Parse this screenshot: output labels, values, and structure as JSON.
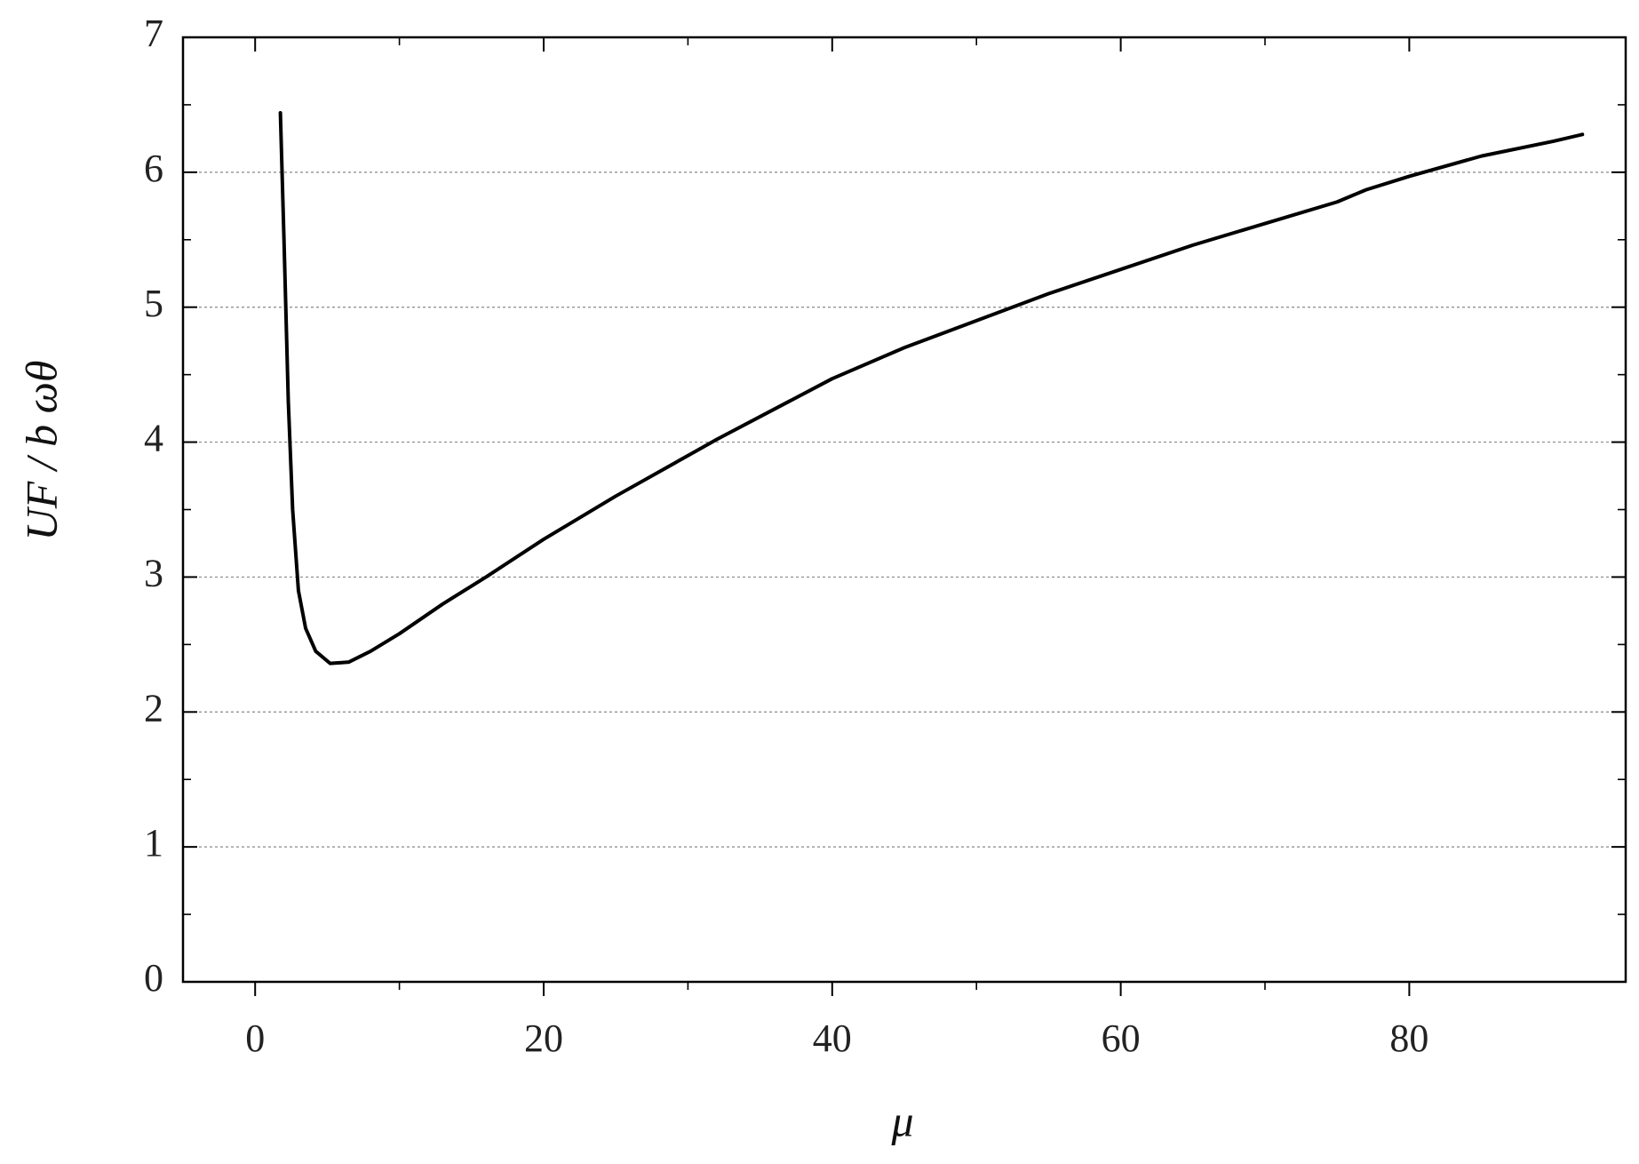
{
  "chart_data": {
    "type": "line",
    "xlabel": "μ",
    "ylabel": "UF / b ωθ",
    "xlim": [
      -5,
      95
    ],
    "ylim": [
      0,
      7
    ],
    "xticks": [
      0,
      20,
      40,
      60,
      80
    ],
    "yticks": [
      0,
      1,
      2,
      3,
      4,
      5,
      6,
      7
    ],
    "grid": true,
    "series": [
      {
        "color": "#000000",
        "x": [
          1.75,
          2.0,
          2.3,
          2.6,
          3.0,
          3.5,
          4.2,
          5.2,
          6.5,
          8,
          10,
          13,
          16,
          20,
          25,
          30,
          32,
          40,
          45,
          50,
          55,
          60,
          65,
          70,
          75,
          77,
          80,
          85,
          90,
          92
        ],
        "values": [
          6.44,
          5.5,
          4.3,
          3.5,
          2.9,
          2.62,
          2.45,
          2.36,
          2.37,
          2.45,
          2.58,
          2.8,
          3.0,
          3.28,
          3.6,
          3.9,
          4.02,
          4.47,
          4.7,
          4.9,
          5.1,
          5.28,
          5.46,
          5.62,
          5.78,
          5.87,
          5.97,
          6.12,
          6.23,
          6.28
        ]
      }
    ]
  }
}
